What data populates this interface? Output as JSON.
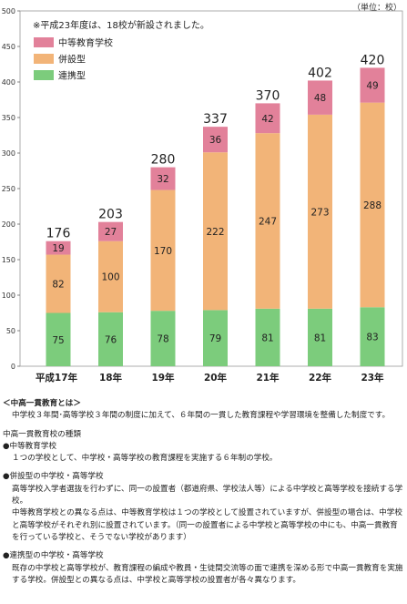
{
  "unit": "（単位：校）",
  "colors": {
    "integrated": "#e2819a",
    "combined": "#f2b478",
    "linked": "#7ccc7c",
    "axis": "#666666",
    "frame": "#999999"
  },
  "chart_data": {
    "type": "bar",
    "stacked": true,
    "categories": [
      "平成17年",
      "18年",
      "19年",
      "20年",
      "21年",
      "22年",
      "23年"
    ],
    "series": [
      {
        "name": "連携型",
        "key": "linked",
        "values": [
          75,
          76,
          78,
          79,
          81,
          81,
          83
        ]
      },
      {
        "name": "併設型",
        "key": "combined",
        "values": [
          82,
          100,
          170,
          222,
          247,
          273,
          288
        ]
      },
      {
        "name": "中等教育学校",
        "key": "integrated",
        "values": [
          19,
          27,
          32,
          36,
          42,
          48,
          49
        ]
      }
    ],
    "totals": [
      176,
      203,
      280,
      337,
      370,
      402,
      420
    ],
    "ylim": [
      0,
      500
    ],
    "yticks": [
      0,
      50,
      100,
      150,
      200,
      250,
      300,
      350,
      400,
      450,
      500
    ],
    "annotation": "※平成23年度は、18校が新設されました。",
    "legend": [
      "中等教育学校",
      "併設型",
      "連携型"
    ],
    "legend_placement": "top-left",
    "grid": false
  },
  "notes": {
    "title": "＜中高一貫教育とは＞",
    "intro": "中学校３年間･高等学校３年間の制度に加えて、６年間の一貫した教育課程や学習環境を整備した制度です。",
    "types_title": "中高一貫教育校の種類",
    "t1_title": "●中等教育学校",
    "t1_body": "１つの学校として、中学校・高等学校の教育課程を実施する６年制の学校。",
    "t2_title": "●併設型の中学校・高等学校",
    "t2_body1": "高等学校入学者選抜を行わずに、同一の設置者（都道府県、学校法人等）による中学校と高等学校を接続する学校。",
    "t2_body2": "中等教育学校との異なる点は、中等教育学校は１つの学校として設置されていますが、併設型の場合は、中学校と高等学校がそれぞれ別に設置されています。（同一の設置者による中学校と高等学校の中にも、中高一貫教育を行っている学校と、そうでない学校があります）",
    "t3_title": "●連携型の中学校・高等学校",
    "t3_body": "既存の中学校と高等学校が、教育課程の編成や教員・生徒間交流等の面で連携を深める形で中高一貫教育を実施する学校。併設型との異なる点は、中学校と高等学校の設置者が各々異なります。"
  }
}
